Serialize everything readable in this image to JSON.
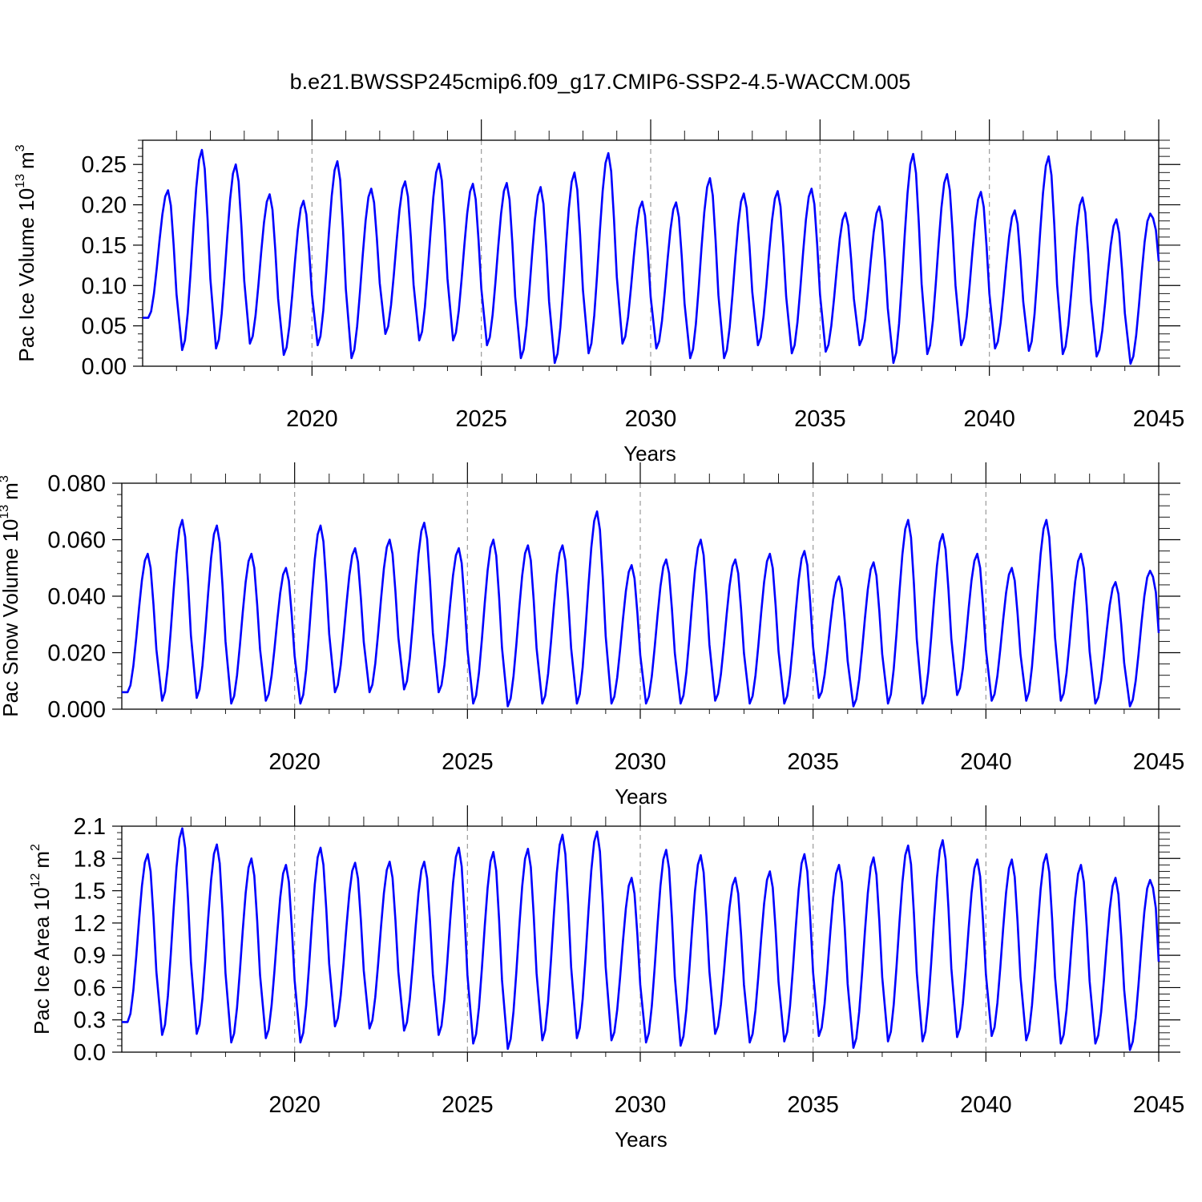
{
  "figure": {
    "title": "b.e21.BWSSP245cmip6.f09_g17.CMIP6-SSP2-4.5-WACCM.005",
    "line_color": "#0000ff",
    "grid_color": "#9a9a9a"
  },
  "chart_data": [
    {
      "type": "line",
      "name": "ice-volume",
      "ylabel_main": "Pac Ice Volume 10",
      "ylabel_exp": "13",
      "ylabel_unit": "m",
      "ylabel_unit_exp": "3",
      "xlabel": "Years",
      "xlim": [
        2015,
        2045
      ],
      "ylim": [
        0,
        0.28
      ],
      "xticks": [
        2020,
        2025,
        2030,
        2035,
        2040,
        2045
      ],
      "xtick_labels": [
        "2020",
        "2025",
        "2030",
        "2035",
        "2040",
        "2045"
      ],
      "yticks": [
        0,
        0.05,
        0.1,
        0.15,
        0.2,
        0.25
      ],
      "ytick_labels": [
        "0.00",
        "0.05",
        "0.10",
        "0.15",
        "0.20",
        "0.25"
      ],
      "grid_x": [
        2020,
        2025,
        2030,
        2035,
        2040
      ],
      "series": [
        {
          "name": "Pac Ice Volume",
          "start_year": 2015.0,
          "step": 0.0833333,
          "peaks": [
            0.218,
            0.268,
            0.25,
            0.213,
            0.205,
            0.254,
            0.22,
            0.229,
            0.251,
            0.226,
            0.227,
            0.222,
            0.24,
            0.264,
            0.204,
            0.203,
            0.233,
            0.214,
            0.217,
            0.22,
            0.19,
            0.198,
            0.263,
            0.238,
            0.216,
            0.193,
            0.26,
            0.209,
            0.182,
            0.189
          ],
          "mins": [
            0.06,
            0.02,
            0.022,
            0.028,
            0.014,
            0.026,
            0.01,
            0.04,
            0.032,
            0.032,
            0.026,
            0.01,
            0.004,
            0.016,
            0.028,
            0.022,
            0.01,
            0.01,
            0.026,
            0.016,
            0.018,
            0.026,
            0.004,
            0.015,
            0.026,
            0.022,
            0.019,
            0.015,
            0.012,
            0.003
          ],
          "final": 0.13
        }
      ]
    },
    {
      "type": "line",
      "name": "snow-volume",
      "ylabel_main": "Pac Snow Volume 10",
      "ylabel_exp": "13",
      "ylabel_unit": "m",
      "ylabel_unit_exp": "3",
      "xlabel": "Years",
      "xlim": [
        2015,
        2045
      ],
      "ylim": [
        0,
        0.08
      ],
      "xticks": [
        2020,
        2025,
        2030,
        2035,
        2040,
        2045
      ],
      "xtick_labels": [
        "2020",
        "2025",
        "2030",
        "2035",
        "2040",
        "2045"
      ],
      "yticks": [
        0,
        0.02,
        0.04,
        0.06,
        0.08
      ],
      "ytick_labels": [
        "0.000",
        "0.020",
        "0.040",
        "0.060",
        "0.080"
      ],
      "grid_x": [
        2020,
        2025,
        2030,
        2035,
        2040
      ],
      "series": [
        {
          "name": "Pac Snow Volume",
          "start_year": 2015.0,
          "step": 0.0833333,
          "peaks": [
            0.055,
            0.067,
            0.065,
            0.055,
            0.05,
            0.065,
            0.057,
            0.06,
            0.066,
            0.057,
            0.06,
            0.058,
            0.058,
            0.07,
            0.051,
            0.053,
            0.06,
            0.053,
            0.055,
            0.056,
            0.047,
            0.052,
            0.067,
            0.062,
            0.055,
            0.05,
            0.067,
            0.055,
            0.045,
            0.049
          ],
          "mins": [
            0.006,
            0.003,
            0.004,
            0.002,
            0.003,
            0.002,
            0.006,
            0.006,
            0.007,
            0.006,
            0.002,
            0.001,
            0.002,
            0.002,
            0.002,
            0.002,
            0.002,
            0.003,
            0.002,
            0.002,
            0.004,
            0.001,
            0.002,
            0.002,
            0.005,
            0.003,
            0.003,
            0.003,
            0.002,
            0.001
          ],
          "final": 0.027
        }
      ]
    },
    {
      "type": "line",
      "name": "ice-area",
      "ylabel_main": "Pac Ice Area 10",
      "ylabel_exp": "12",
      "ylabel_unit": "m",
      "ylabel_unit_exp": "2",
      "xlabel": "Years",
      "xlim": [
        2015,
        2045
      ],
      "ylim": [
        0,
        2.1
      ],
      "xticks": [
        2020,
        2025,
        2030,
        2035,
        2040,
        2045
      ],
      "xtick_labels": [
        "2020",
        "2025",
        "2030",
        "2035",
        "2040",
        "2045"
      ],
      "yticks": [
        0,
        0.3,
        0.6,
        0.9,
        1.2,
        1.5,
        1.8,
        2.1
      ],
      "ytick_labels": [
        "0.0",
        "0.3",
        "0.6",
        "0.9",
        "1.2",
        "1.5",
        "1.8",
        "2.1"
      ],
      "grid_x": [
        2020,
        2025,
        2030,
        2035,
        2040
      ],
      "series": [
        {
          "name": "Pac Ice Area",
          "start_year": 2015.0,
          "step": 0.0833333,
          "peaks": [
            1.84,
            2.08,
            1.93,
            1.8,
            1.74,
            1.9,
            1.76,
            1.77,
            1.77,
            1.9,
            1.86,
            1.89,
            2.02,
            2.05,
            1.62,
            1.88,
            1.83,
            1.62,
            1.68,
            1.84,
            1.74,
            1.81,
            1.92,
            1.97,
            1.79,
            1.79,
            1.84,
            1.74,
            1.62,
            1.6
          ],
          "mins": [
            0.28,
            0.16,
            0.17,
            0.09,
            0.13,
            0.09,
            0.24,
            0.22,
            0.2,
            0.16,
            0.08,
            0.03,
            0.11,
            0.13,
            0.11,
            0.09,
            0.06,
            0.17,
            0.09,
            0.1,
            0.15,
            0.04,
            0.1,
            0.1,
            0.14,
            0.15,
            0.11,
            0.08,
            0.08,
            0.02
          ],
          "final": 0.84
        }
      ]
    }
  ]
}
